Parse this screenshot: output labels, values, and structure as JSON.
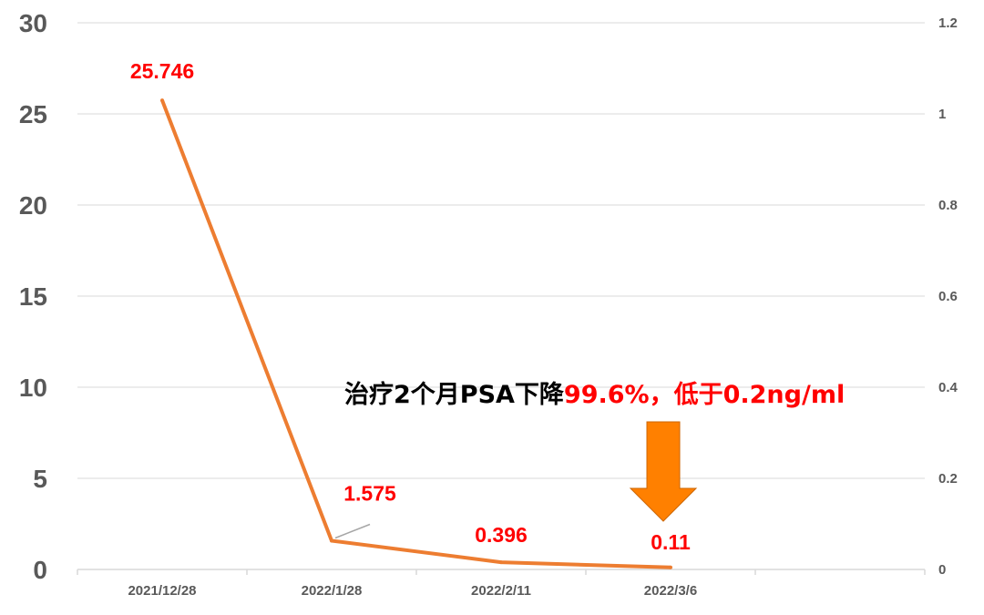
{
  "chart_data": {
    "type": "line",
    "categories": [
      "2021/12/28",
      "2022/1/28",
      "2022/2/11",
      "2022/3/6"
    ],
    "series": [
      {
        "values": [
          25.746,
          1.575,
          0.396,
          0.11
        ],
        "labels": [
          "25.746",
          "1.575",
          "0.396",
          "0.11"
        ]
      }
    ],
    "ylim": [
      0,
      30
    ],
    "yticks": [
      "0",
      "5",
      "10",
      "15",
      "20",
      "25",
      "30"
    ],
    "y2lim": [
      0,
      1.2
    ],
    "y2ticks": [
      "0",
      "0.2",
      "0.4",
      "0.6",
      "0.8",
      "1",
      "1.2"
    ],
    "grid": true,
    "annotation": {
      "text_black": "治疗2个月PSA下降",
      "text_red": "99.6%，低于0.2ng/ml"
    },
    "colors": {
      "line": "#ed7d31",
      "data_label": "#ff0000",
      "arrow": "#ff8000",
      "grid": "#d9d9d9"
    }
  }
}
